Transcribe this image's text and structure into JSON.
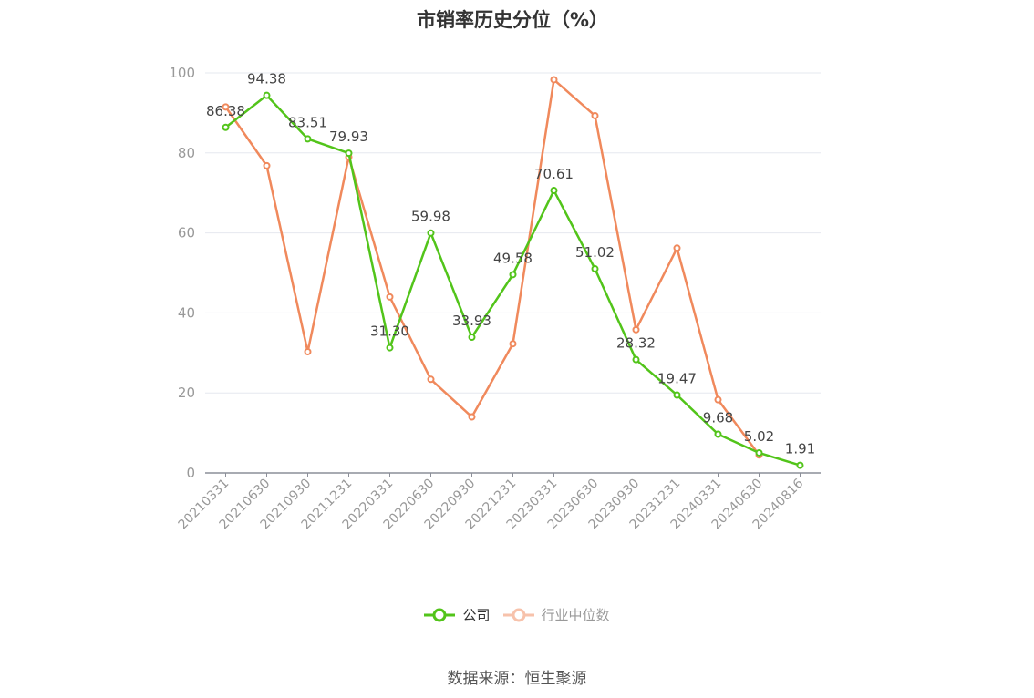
{
  "chart_data": {
    "type": "line",
    "title": "市销率历史分位（%）",
    "categories": [
      "20210331",
      "20210630",
      "20210930",
      "20211231",
      "20220331",
      "20220630",
      "20220930",
      "20221231",
      "20230331",
      "20230630",
      "20230930",
      "20231231",
      "20240331",
      "20240630",
      "20240816"
    ],
    "series": [
      {
        "name": "公司",
        "color": "#52c41a",
        "values": [
          86.38,
          94.38,
          83.51,
          79.93,
          31.3,
          59.98,
          33.93,
          49.58,
          70.61,
          51.02,
          28.32,
          19.47,
          9.68,
          5.02,
          1.91
        ],
        "labels": [
          "86.38",
          "94.38",
          "83.51",
          "79.93",
          "31.30",
          "59.98",
          "33.93",
          "49.58",
          "70.61",
          "51.02",
          "28.32",
          "19.47",
          "9.68",
          "5.02",
          "1.91"
        ]
      },
      {
        "name": "行业中位数",
        "color": "#f0895c",
        "values": [
          91.5,
          76.8,
          30.3,
          79.0,
          44.0,
          23.4,
          14.0,
          32.3,
          98.3,
          89.3,
          35.8,
          56.2,
          18.3,
          4.5,
          null
        ]
      }
    ],
    "yticks": [
      "0",
      "20",
      "40",
      "60",
      "80",
      "100"
    ],
    "ylim": [
      0,
      100
    ],
    "grid": true,
    "legend_position": "bottom"
  },
  "source": "数据来源：恒生聚源"
}
